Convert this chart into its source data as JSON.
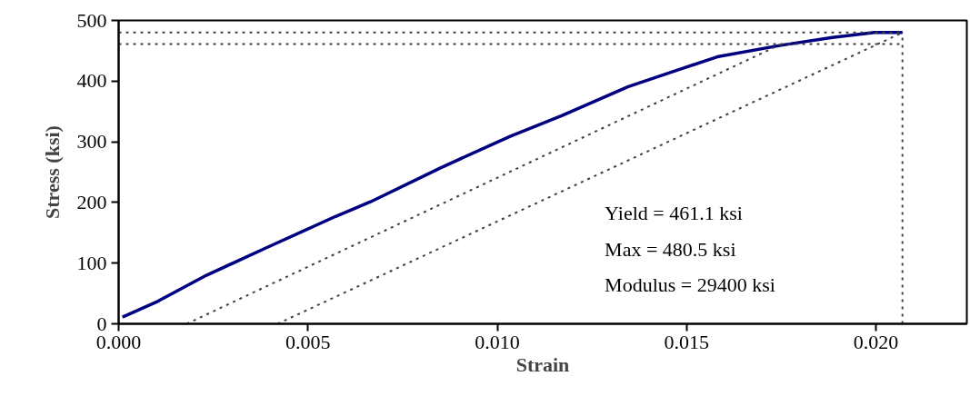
{
  "chart_data": {
    "type": "line",
    "xlabel": "Strain",
    "ylabel": "Stress (ksi)",
    "xlim": [
      0,
      0.0224
    ],
    "ylim": [
      0,
      500
    ],
    "xticks": [
      {
        "value": 0,
        "label": "0.000"
      },
      {
        "value": 0.005,
        "label": "0.005"
      },
      {
        "value": 0.01,
        "label": "0.010"
      },
      {
        "value": 0.015,
        "label": "0.015"
      },
      {
        "value": 0.02,
        "label": "0.020"
      }
    ],
    "yticks": [
      0,
      100,
      200,
      300,
      400,
      500
    ],
    "grid": false,
    "marker": "none",
    "series": [
      {
        "color": "#000080",
        "line_style": "solid",
        "x": [
          0.0001,
          0.00103,
          0.00232,
          0.00389,
          0.00573,
          0.00665,
          0.0085,
          0.01034,
          0.0117,
          0.01346,
          0.01485,
          0.01581,
          0.01749,
          0.01885,
          0.01996,
          0.0207
        ],
        "values": [
          11,
          37,
          80,
          125,
          177,
          201,
          257,
          309,
          343,
          391,
          420,
          440,
          459,
          472,
          480,
          480
        ]
      },
      {
        "color": "#404040",
        "line_style": "dotted",
        "x": [
          0.0018,
          0.0175
        ],
        "values": [
          0,
          461
        ]
      },
      {
        "color": "#404040",
        "line_style": "dotted",
        "x": [
          0.0042,
          0.0207
        ],
        "values": [
          0,
          480
        ]
      },
      {
        "color": "#404040",
        "line_style": "dotted",
        "x": [
          0,
          0.0207
        ],
        "values": [
          461,
          461
        ]
      },
      {
        "color": "#404040",
        "line_style": "dotted",
        "x": [
          0,
          0.0207
        ],
        "values": [
          480,
          480
        ]
      },
      {
        "color": "#404040",
        "line_style": "dotted",
        "x": [
          0.0207,
          0.0207
        ],
        "values": [
          0,
          480
        ]
      }
    ],
    "annotations": [
      "Yield = 461.1 ksi",
      "Max = 480.5 ksi",
      "Modulus = 29400 ksi"
    ]
  }
}
